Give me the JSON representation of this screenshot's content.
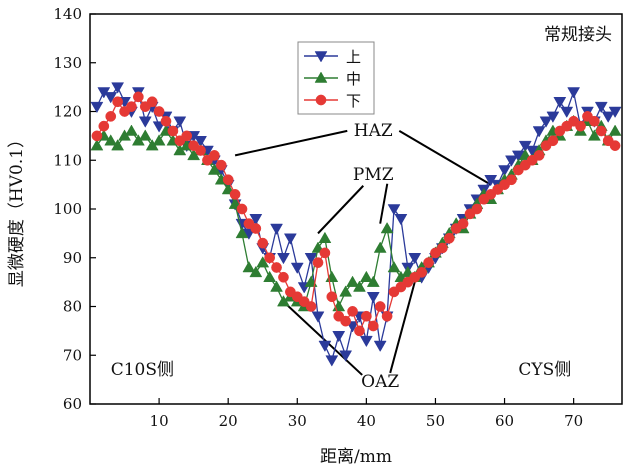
{
  "chart_data": {
    "type": "scatter",
    "title": "常规接头",
    "xlabel": "距离/mm",
    "ylabel": "显微硬度（HV0.1）",
    "xlim": [
      0,
      77
    ],
    "ylim": [
      60,
      140
    ],
    "xticks": [
      10,
      20,
      30,
      40,
      50,
      60,
      70
    ],
    "yticks": [
      60,
      70,
      80,
      90,
      100,
      110,
      120,
      130,
      140
    ],
    "grid": false,
    "legend_position": "top-center",
    "series": [
      {
        "name": "上",
        "color": "#2b3a9a",
        "marker": "triangle-down",
        "points": [
          [
            1,
            121
          ],
          [
            2,
            124
          ],
          [
            3,
            123
          ],
          [
            4,
            125
          ],
          [
            5,
            122
          ],
          [
            6,
            120
          ],
          [
            7,
            124
          ],
          [
            8,
            118
          ],
          [
            9,
            121
          ],
          [
            10,
            117
          ],
          [
            11,
            119
          ],
          [
            12,
            116
          ],
          [
            13,
            118
          ],
          [
            14,
            113
          ],
          [
            15,
            115
          ],
          [
            16,
            114
          ],
          [
            17,
            112
          ],
          [
            18,
            110
          ],
          [
            19,
            108
          ],
          [
            20,
            105
          ],
          [
            21,
            101
          ],
          [
            22,
            97
          ],
          [
            23,
            95
          ],
          [
            24,
            98
          ],
          [
            25,
            92
          ],
          [
            26,
            90
          ],
          [
            27,
            96
          ],
          [
            28,
            90
          ],
          [
            29,
            94
          ],
          [
            30,
            88
          ],
          [
            31,
            84
          ],
          [
            32,
            90
          ],
          [
            33,
            78
          ],
          [
            34,
            72
          ],
          [
            35,
            69
          ],
          [
            36,
            74
          ],
          [
            37,
            70
          ],
          [
            38,
            76
          ],
          [
            39,
            78
          ],
          [
            40,
            73
          ],
          [
            41,
            82
          ],
          [
            42,
            72
          ],
          [
            43,
            78
          ],
          [
            44,
            100
          ],
          [
            45,
            98
          ],
          [
            46,
            88
          ],
          [
            47,
            90
          ],
          [
            48,
            86
          ],
          [
            49,
            88
          ],
          [
            50,
            90
          ],
          [
            51,
            92
          ],
          [
            52,
            94
          ],
          [
            53,
            96
          ],
          [
            54,
            98
          ],
          [
            55,
            100
          ],
          [
            56,
            102
          ],
          [
            57,
            104
          ],
          [
            58,
            106
          ],
          [
            59,
            105
          ],
          [
            60,
            108
          ],
          [
            61,
            110
          ],
          [
            62,
            111
          ],
          [
            63,
            113
          ],
          [
            64,
            112
          ],
          [
            65,
            116
          ],
          [
            66,
            118
          ],
          [
            67,
            119
          ],
          [
            68,
            122
          ],
          [
            69,
            120
          ],
          [
            70,
            124
          ],
          [
            71,
            117
          ],
          [
            72,
            120
          ],
          [
            73,
            118
          ],
          [
            74,
            121
          ],
          [
            75,
            119
          ],
          [
            76,
            120
          ]
        ]
      },
      {
        "name": "中",
        "color": "#2e7d32",
        "marker": "triangle-up",
        "points": [
          [
            1,
            113
          ],
          [
            2,
            115
          ],
          [
            3,
            114
          ],
          [
            4,
            113
          ],
          [
            5,
            115
          ],
          [
            6,
            116
          ],
          [
            7,
            114
          ],
          [
            8,
            115
          ],
          [
            9,
            113
          ],
          [
            10,
            114
          ],
          [
            11,
            116
          ],
          [
            12,
            114
          ],
          [
            13,
            112
          ],
          [
            14,
            113
          ],
          [
            15,
            111
          ],
          [
            16,
            112
          ],
          [
            17,
            110
          ],
          [
            18,
            108
          ],
          [
            19,
            106
          ],
          [
            20,
            104
          ],
          [
            21,
            101
          ],
          [
            22,
            95
          ],
          [
            23,
            88
          ],
          [
            24,
            87
          ],
          [
            25,
            89
          ],
          [
            26,
            86
          ],
          [
            27,
            84
          ],
          [
            28,
            81
          ],
          [
            29,
            82
          ],
          [
            30,
            81
          ],
          [
            31,
            80
          ],
          [
            32,
            85
          ],
          [
            33,
            92
          ],
          [
            34,
            94
          ],
          [
            35,
            86
          ],
          [
            36,
            80
          ],
          [
            37,
            83
          ],
          [
            38,
            85
          ],
          [
            39,
            84
          ],
          [
            40,
            86
          ],
          [
            41,
            85
          ],
          [
            42,
            92
          ],
          [
            43,
            96
          ],
          [
            44,
            88
          ],
          [
            45,
            86
          ],
          [
            46,
            87
          ],
          [
            47,
            86
          ],
          [
            48,
            88
          ],
          [
            49,
            89
          ],
          [
            50,
            91
          ],
          [
            51,
            93
          ],
          [
            52,
            95
          ],
          [
            53,
            97
          ],
          [
            54,
            96
          ],
          [
            55,
            99
          ],
          [
            56,
            101
          ],
          [
            57,
            103
          ],
          [
            58,
            102
          ],
          [
            59,
            104
          ],
          [
            60,
            106
          ],
          [
            61,
            107
          ],
          [
            62,
            109
          ],
          [
            63,
            111
          ],
          [
            64,
            110
          ],
          [
            65,
            112
          ],
          [
            66,
            114
          ],
          [
            67,
            116
          ],
          [
            68,
            115
          ],
          [
            69,
            117
          ],
          [
            70,
            118
          ],
          [
            71,
            116
          ],
          [
            72,
            118
          ],
          [
            73,
            115
          ],
          [
            74,
            117
          ],
          [
            75,
            114
          ],
          [
            76,
            116
          ]
        ]
      },
      {
        "name": "下",
        "color": "#e53935",
        "marker": "circle",
        "points": [
          [
            1,
            115
          ],
          [
            2,
            117
          ],
          [
            3,
            119
          ],
          [
            4,
            122
          ],
          [
            5,
            120
          ],
          [
            6,
            121
          ],
          [
            7,
            123
          ],
          [
            8,
            121
          ],
          [
            9,
            122
          ],
          [
            10,
            120
          ],
          [
            11,
            118
          ],
          [
            12,
            116
          ],
          [
            13,
            114
          ],
          [
            14,
            115
          ],
          [
            15,
            113
          ],
          [
            16,
            112
          ],
          [
            17,
            110
          ],
          [
            18,
            111
          ],
          [
            19,
            109
          ],
          [
            20,
            106
          ],
          [
            21,
            103
          ],
          [
            22,
            100
          ],
          [
            23,
            97
          ],
          [
            24,
            96
          ],
          [
            25,
            93
          ],
          [
            26,
            90
          ],
          [
            27,
            88
          ],
          [
            28,
            86
          ],
          [
            29,
            83
          ],
          [
            30,
            82
          ],
          [
            31,
            81
          ],
          [
            32,
            80
          ],
          [
            33,
            89
          ],
          [
            34,
            91
          ],
          [
            35,
            82
          ],
          [
            36,
            78
          ],
          [
            37,
            77
          ],
          [
            38,
            79
          ],
          [
            39,
            75
          ],
          [
            40,
            78
          ],
          [
            41,
            76
          ],
          [
            42,
            80
          ],
          [
            43,
            78
          ],
          [
            44,
            83
          ],
          [
            45,
            84
          ],
          [
            46,
            85
          ],
          [
            47,
            86
          ],
          [
            48,
            87
          ],
          [
            49,
            89
          ],
          [
            50,
            91
          ],
          [
            51,
            92
          ],
          [
            52,
            94
          ],
          [
            53,
            96
          ],
          [
            54,
            97
          ],
          [
            55,
            99
          ],
          [
            56,
            100
          ],
          [
            57,
            102
          ],
          [
            58,
            103
          ],
          [
            59,
            104
          ],
          [
            60,
            105
          ],
          [
            61,
            106
          ],
          [
            62,
            108
          ],
          [
            63,
            109
          ],
          [
            64,
            110
          ],
          [
            65,
            111
          ],
          [
            66,
            113
          ],
          [
            67,
            114
          ],
          [
            68,
            116
          ],
          [
            69,
            117
          ],
          [
            70,
            118
          ],
          [
            71,
            117
          ],
          [
            72,
            119
          ],
          [
            73,
            118
          ],
          [
            74,
            116
          ],
          [
            75,
            114
          ],
          [
            76,
            113
          ]
        ]
      }
    ],
    "annotations": [
      {
        "text": "HAZ",
        "x": 41,
        "y": 115,
        "pointers": [
          [
            21,
            111
          ],
          [
            58,
            105
          ]
        ]
      },
      {
        "text": "PMZ",
        "x": 41,
        "y": 106,
        "pointers": [
          [
            33,
            95
          ],
          [
            42,
            97
          ]
        ]
      },
      {
        "text": "OAZ",
        "x": 42,
        "y": 63.5,
        "pointers": [
          [
            28,
            81
          ],
          [
            47,
            85
          ]
        ]
      },
      {
        "text": "C10S侧",
        "x": 3,
        "y": 66
      },
      {
        "text": "CYS侧",
        "x": 62,
        "y": 66
      }
    ]
  }
}
